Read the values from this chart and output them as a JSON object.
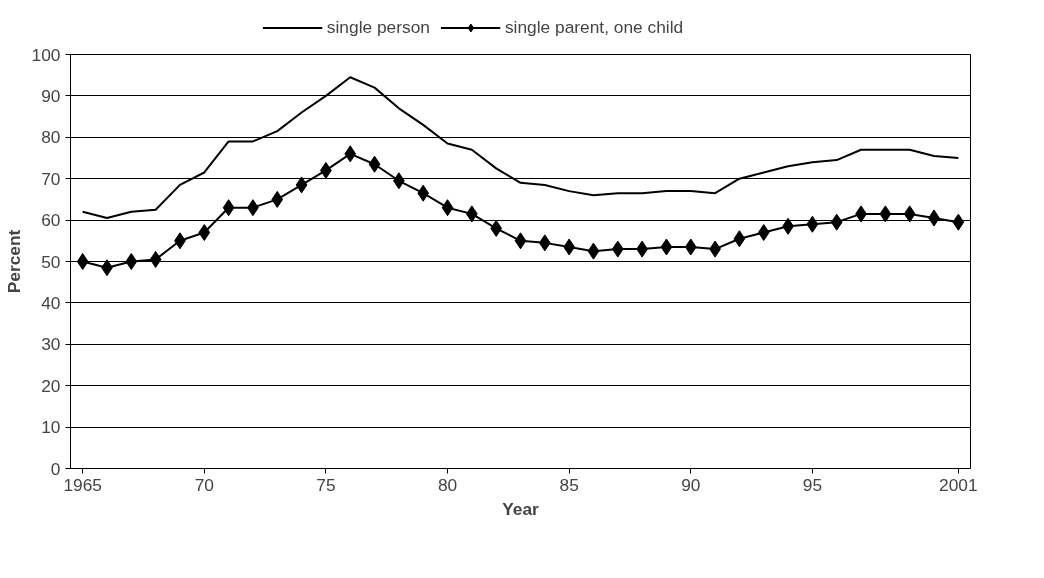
{
  "chart_data": {
    "type": "line",
    "xlabel": "Year",
    "ylabel": "Percent",
    "x": [
      1965,
      1966,
      1967,
      1968,
      1969,
      1970,
      1971,
      1972,
      1973,
      1974,
      1975,
      1976,
      1977,
      1978,
      1979,
      1980,
      1981,
      1982,
      1983,
      1984,
      1985,
      1986,
      1987,
      1988,
      1989,
      1990,
      1991,
      1992,
      1993,
      1994,
      1995,
      1996,
      1997,
      1998,
      1999,
      2000,
      2001
    ],
    "series": [
      {
        "name": "single person",
        "color": "#000000",
        "marker": "none",
        "values": [
          62,
          60.5,
          62,
          62.5,
          68.5,
          71.5,
          79,
          79,
          81.5,
          86,
          90,
          94.5,
          92,
          87,
          83,
          78.5,
          77,
          72.5,
          69,
          68.5,
          67,
          66,
          66.5,
          66.5,
          67,
          67,
          66.5,
          70,
          71.5,
          73,
          74,
          74.5,
          77,
          77,
          77,
          75.5,
          75
        ]
      },
      {
        "name": "single parent, one child",
        "color": "#000000",
        "marker": "diamond",
        "values": [
          50,
          48.5,
          50,
          50.5,
          55,
          57,
          63,
          63,
          65,
          68.5,
          72,
          76,
          73.5,
          69.5,
          66.5,
          63,
          61.5,
          58,
          55,
          54.5,
          53.5,
          52.5,
          53,
          53,
          53.5,
          53.5,
          53,
          55.5,
          57,
          58.5,
          59,
          59.5,
          61.5,
          61.5,
          61.5,
          60.5,
          59.5
        ]
      }
    ],
    "xlim": [
      1964.5,
      2001.5
    ],
    "xticks": [
      1965,
      {
        "value": 1970,
        "label": "70"
      },
      {
        "value": 1975,
        "label": "75"
      },
      {
        "value": 1980,
        "label": "80"
      },
      {
        "value": 1985,
        "label": "85"
      },
      {
        "value": 1990,
        "label": "90"
      },
      {
        "value": 1995,
        "label": "95"
      },
      2001
    ],
    "ylim": [
      0,
      100
    ],
    "yticks": [
      0,
      10,
      20,
      30,
      40,
      50,
      60,
      70,
      80,
      90,
      100
    ],
    "grid": "y",
    "legend": "top",
    "line_style": "solid"
  }
}
